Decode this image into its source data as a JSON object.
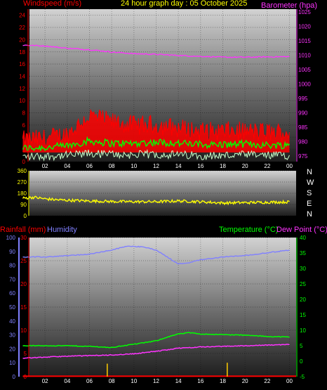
{
  "header": {
    "title": "24 hour graph day : 05 October 2025",
    "windspeed_label": "Windspeed (m/s)",
    "barometer_label": "Barometer (hpa)",
    "rainfall_label": "Rainfall (mm)",
    "humidity_label": "Humidity",
    "temperature_label": "Temperature (°C)",
    "dewpoint_label": "Dew Point (°C)"
  },
  "compass_labels": [
    "N",
    "W",
    "S",
    "E",
    "N"
  ],
  "colors": {
    "windspeed": "#ff0000",
    "gust": "#ff0000",
    "avg_wind": "#00ff00",
    "wind_low": "#ccffcc",
    "barometer": "#ff33ff",
    "direction": "#ffff00",
    "humidity": "#8080ff",
    "temperature": "#00ff00",
    "dewpoint": "#ff33ff",
    "rain": "#ffcc00",
    "rain_total": "#ff0000"
  },
  "chart_data": [
    {
      "type": "line",
      "id": "wind_baro",
      "x_ticks": [
        "02",
        "04",
        "06",
        "08",
        "10",
        "12",
        "14",
        "16",
        "18",
        "20",
        "22",
        "00"
      ],
      "y_left_ticks": [
        0,
        2,
        4,
        6,
        8,
        10,
        12,
        14,
        16,
        18,
        20,
        22,
        24
      ],
      "y_left_range": [
        0,
        25
      ],
      "y_right_ticks": [
        975,
        980,
        985,
        990,
        995,
        1000,
        1005,
        1010,
        1015,
        1020,
        1025
      ],
      "y_right_range": [
        973,
        1026
      ],
      "series": [
        {
          "name": "Windspeed (m/s)",
          "axis": "left",
          "style": "gust",
          "points": [
            [
              0,
              3.5
            ],
            [
              2,
              3.8
            ],
            [
              4,
              4.5
            ],
            [
              6,
              7.5
            ],
            [
              8,
              6.5
            ],
            [
              10,
              6.0
            ],
            [
              12,
              6.0
            ],
            [
              14,
              5.5
            ],
            [
              16,
              5.0
            ],
            [
              18,
              5.0
            ],
            [
              20,
              5.0
            ],
            [
              22,
              4.8
            ],
            [
              24,
              4.8
            ]
          ]
        },
        {
          "name": "",
          "axis": "left",
          "style": "avg",
          "points": [
            [
              0,
              2.2
            ],
            [
              2,
              2.3
            ],
            [
              4,
              2.6
            ],
            [
              6,
              3.4
            ],
            [
              8,
              3.0
            ],
            [
              10,
              3.0
            ],
            [
              12,
              3.2
            ],
            [
              14,
              3.0
            ],
            [
              16,
              2.8
            ],
            [
              18,
              2.8
            ],
            [
              20,
              2.9
            ],
            [
              22,
              2.7
            ],
            [
              24,
              2.7
            ]
          ]
        },
        {
          "name": "",
          "axis": "left",
          "style": "low",
          "points": [
            [
              0,
              0.8
            ],
            [
              2,
              0.9
            ],
            [
              4,
              1.0
            ],
            [
              6,
              1.3
            ],
            [
              8,
              1.2
            ],
            [
              10,
              1.1
            ],
            [
              12,
              1.2
            ],
            [
              14,
              1.1
            ],
            [
              16,
              1.0
            ],
            [
              18,
              1.0
            ],
            [
              20,
              1.1
            ],
            [
              22,
              1.0
            ],
            [
              24,
              1.0
            ]
          ]
        },
        {
          "name": "Barometer (hpa)",
          "axis": "right",
          "points": [
            [
              0,
              1013.5
            ],
            [
              2,
              1013.2
            ],
            [
              4,
              1012.4
            ],
            [
              6,
              1011.9
            ],
            [
              8,
              1011.1
            ],
            [
              10,
              1010.5
            ],
            [
              12,
              1010.3
            ],
            [
              14,
              1009.9
            ],
            [
              16,
              1009.6
            ],
            [
              18,
              1009.3
            ],
            [
              20,
              1009.3
            ],
            [
              22,
              1009.4
            ],
            [
              24,
              1009.5
            ]
          ]
        }
      ]
    },
    {
      "type": "line",
      "id": "wind_direction",
      "x_ticks": [],
      "y_ticks": [
        0,
        90,
        180,
        270,
        360
      ],
      "y_range": [
        0,
        360
      ],
      "series": [
        {
          "name": "",
          "points": [
            [
              0,
              140
            ],
            [
              1,
              148
            ],
            [
              2,
              135
            ],
            [
              3,
              128
            ],
            [
              4,
              124
            ],
            [
              6,
              118
            ],
            [
              8,
              114
            ],
            [
              10,
              112
            ],
            [
              12,
              112
            ],
            [
              14,
              118
            ],
            [
              16,
              112
            ],
            [
              18,
              102
            ],
            [
              20,
              105
            ],
            [
              22,
              108
            ],
            [
              24,
              110
            ]
          ]
        }
      ]
    },
    {
      "type": "line",
      "id": "rain_hum_temp",
      "x_ticks": [
        "02",
        "04",
        "06",
        "08",
        "10",
        "12",
        "14",
        "16",
        "18",
        "20",
        "22",
        "00"
      ],
      "y_hum_ticks": [
        0,
        10,
        20,
        30,
        40,
        50,
        60,
        70,
        80,
        90,
        100
      ],
      "y_hum_range": [
        0,
        100
      ],
      "y_rain_ticks": [
        0,
        5,
        10,
        15,
        20,
        25,
        30
      ],
      "y_rain_range": [
        0,
        30
      ],
      "y_temp_ticks": [
        -5,
        0,
        5,
        10,
        15,
        20,
        25,
        30,
        35,
        40
      ],
      "y_temp_range": [
        -5,
        40
      ],
      "series": [
        {
          "name": "Humidity",
          "axis": "humidity",
          "points": [
            [
              0,
              86
            ],
            [
              2,
              86
            ],
            [
              4,
              87
            ],
            [
              6,
              88
            ],
            [
              8,
              91
            ],
            [
              9.5,
              94
            ],
            [
              11,
              93
            ],
            [
              12,
              91
            ],
            [
              13,
              86
            ],
            [
              14,
              81
            ],
            [
              15,
              82
            ],
            [
              16,
              84
            ],
            [
              18,
              86
            ],
            [
              20,
              87
            ],
            [
              22,
              89
            ],
            [
              24,
              91
            ]
          ]
        },
        {
          "name": "Temperature (°C)",
          "axis": "temp",
          "points": [
            [
              0,
              5.0
            ],
            [
              2,
              5.0
            ],
            [
              4,
              5.0
            ],
            [
              6,
              4.8
            ],
            [
              8,
              4.4
            ],
            [
              9,
              5.0
            ],
            [
              11,
              6.0
            ],
            [
              12,
              6.6
            ],
            [
              13,
              7.8
            ],
            [
              14,
              8.8
            ],
            [
              15,
              9.2
            ],
            [
              16,
              8.8
            ],
            [
              18,
              8.6
            ],
            [
              20,
              8.4
            ],
            [
              22,
              8.0
            ],
            [
              24,
              7.8
            ]
          ]
        },
        {
          "name": "Dew Point (°C)",
          "axis": "temp",
          "points": [
            [
              0,
              1.0
            ],
            [
              2,
              1.3
            ],
            [
              4,
              1.6
            ],
            [
              6,
              1.8
            ],
            [
              8,
              2.0
            ],
            [
              10,
              2.4
            ],
            [
              12,
              3.2
            ],
            [
              14,
              4.2
            ],
            [
              16,
              4.6
            ],
            [
              18,
              4.8
            ],
            [
              20,
              5.0
            ],
            [
              22,
              5.2
            ],
            [
              24,
              5.4
            ]
          ]
        },
        {
          "name": "Rainfall (mm)",
          "axis": "rain",
          "style": "total",
          "points": [
            [
              0,
              0.1
            ],
            [
              24,
              0.1
            ]
          ]
        }
      ],
      "rain_bars": [
        [
          7.6,
          2.8
        ],
        [
          18.4,
          3.0
        ]
      ]
    }
  ]
}
